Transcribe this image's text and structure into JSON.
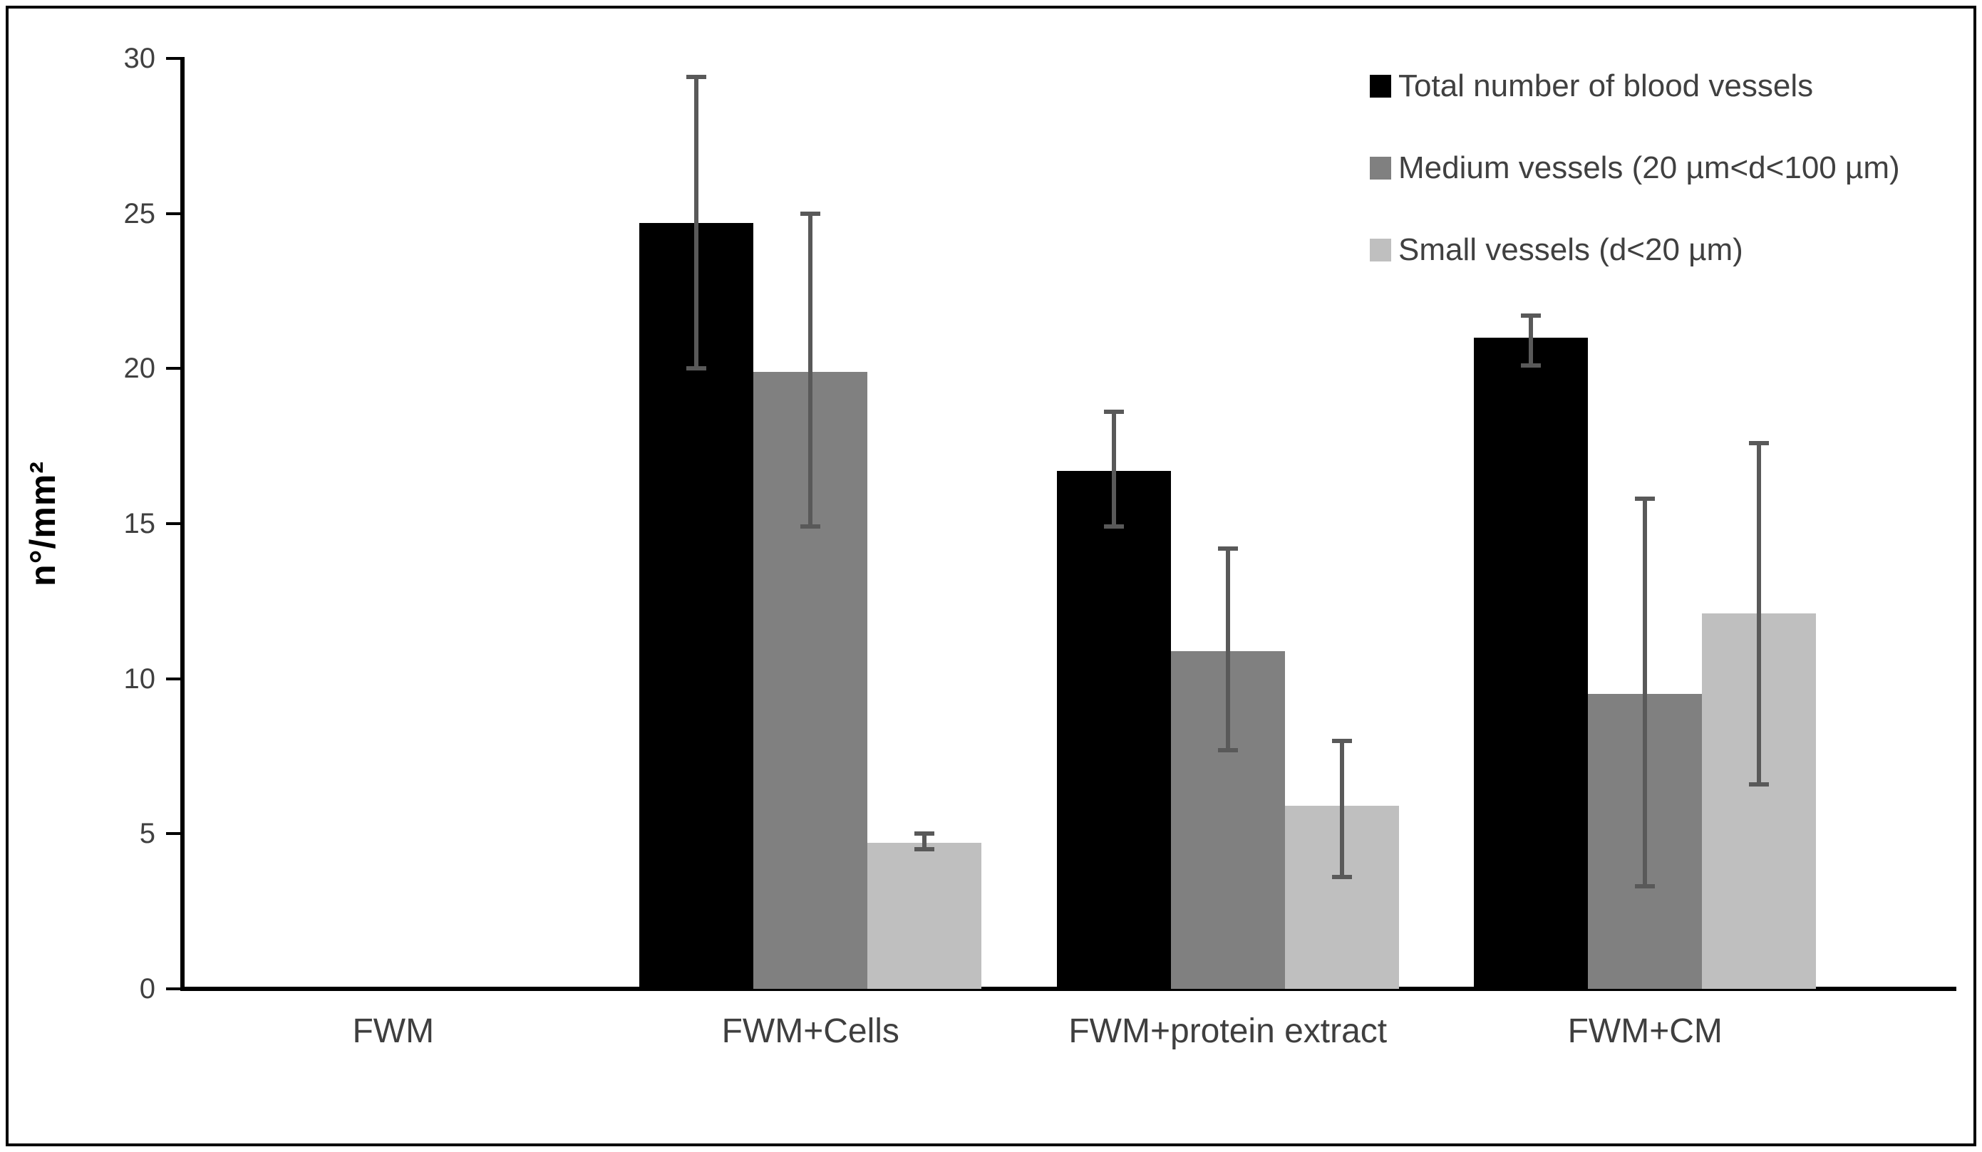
{
  "figure": {
    "background": "#ffffff",
    "border_color": "#000000",
    "axis_color": "#000000",
    "tick_label_color": "#404040",
    "category_label_color": "#3f3f3f"
  },
  "chart_data": {
    "type": "bar",
    "title": "",
    "xlabel": "",
    "ylabel": "n°/mm²",
    "ylim": [
      0,
      30
    ],
    "yticks": [
      0,
      5,
      10,
      15,
      20,
      25,
      30
    ],
    "grid": false,
    "legend_position": "top-right",
    "error_bar_color": "#595959",
    "categories": [
      "FWM",
      "FWM+Cells",
      "FWM+protein extract",
      "FWM+CM"
    ],
    "series": [
      {
        "name": "Total number of blood vessels",
        "color": "#000000",
        "values": [
          0,
          24.7,
          16.7,
          21.0
        ],
        "error_low": [
          null,
          20.0,
          14.9,
          20.1
        ],
        "error_high": [
          null,
          29.4,
          18.6,
          21.7
        ]
      },
      {
        "name": "Medium vessels (20 µm<d<100 µm)",
        "color": "#808080",
        "values": [
          0,
          19.9,
          10.9,
          9.5
        ],
        "error_low": [
          null,
          14.9,
          7.7,
          3.3
        ],
        "error_high": [
          null,
          25.0,
          14.2,
          15.8
        ]
      },
      {
        "name": "Small vessels (d<20 µm)",
        "color": "#BFBFBF",
        "values": [
          0,
          4.7,
          5.9,
          12.1
        ],
        "error_low": [
          null,
          4.5,
          3.6,
          6.6
        ],
        "error_high": [
          null,
          5.0,
          8.0,
          17.6
        ]
      }
    ]
  }
}
